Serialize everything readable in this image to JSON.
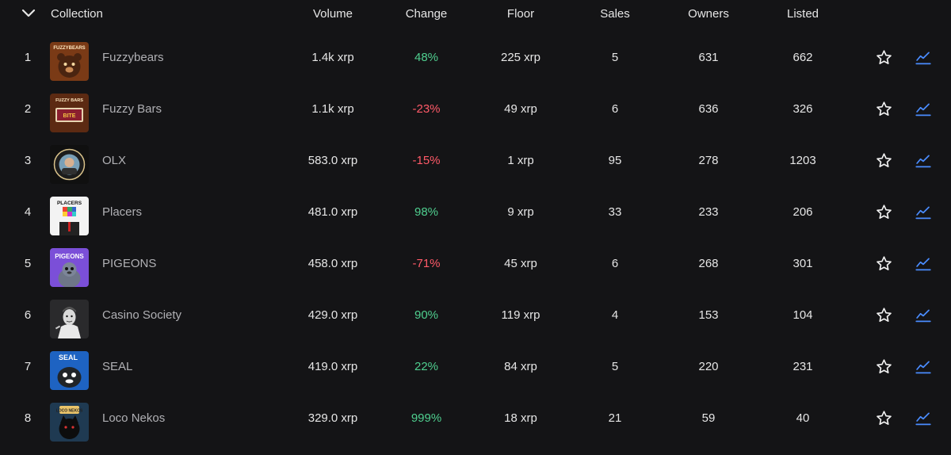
{
  "columns": {
    "collection": "Collection",
    "volume": "Volume",
    "change": "Change",
    "floor": "Floor",
    "sales": "Sales",
    "owners": "Owners",
    "listed": "Listed"
  },
  "icons": {
    "sort": "chevron-down-icon",
    "favorite": "star-icon",
    "chart": "trend-chart-icon"
  },
  "colors": {
    "background": "#141416",
    "positive": "#4fcf8f",
    "negative": "#ff5a68",
    "chart_icon": "#4a8cff",
    "name_text": "#b0b0b4"
  },
  "rows": [
    {
      "rank": "1",
      "name": "Fuzzybears",
      "volume": "1.4k xrp",
      "change": "48%",
      "change_sign": "pos",
      "floor": "225 xrp",
      "sales": "5",
      "owners": "631",
      "listed": "662",
      "thumb_text": "FUZZYBEARS"
    },
    {
      "rank": "2",
      "name": "Fuzzy Bars",
      "volume": "1.1k xrp",
      "change": "-23%",
      "change_sign": "neg",
      "floor": "49 xrp",
      "sales": "6",
      "owners": "636",
      "listed": "326",
      "thumb_text": "FUZZY BARS"
    },
    {
      "rank": "3",
      "name": "OLX",
      "volume": "583.0 xrp",
      "change": "-15%",
      "change_sign": "neg",
      "floor": "1 xrp",
      "sales": "95",
      "owners": "278",
      "listed": "1203",
      "thumb_text": ""
    },
    {
      "rank": "4",
      "name": "Placers",
      "volume": "481.0 xrp",
      "change": "98%",
      "change_sign": "pos",
      "floor": "9 xrp",
      "sales": "33",
      "owners": "233",
      "listed": "206",
      "thumb_text": "PLACERS"
    },
    {
      "rank": "5",
      "name": "PIGEONS",
      "volume": "458.0 xrp",
      "change": "-71%",
      "change_sign": "neg",
      "floor": "45 xrp",
      "sales": "6",
      "owners": "268",
      "listed": "301",
      "thumb_text": "PIGEONS"
    },
    {
      "rank": "6",
      "name": "Casino Society",
      "volume": "429.0 xrp",
      "change": "90%",
      "change_sign": "pos",
      "floor": "119 xrp",
      "sales": "4",
      "owners": "153",
      "listed": "104",
      "thumb_text": ""
    },
    {
      "rank": "7",
      "name": "SEAL",
      "volume": "419.0 xrp",
      "change": "22%",
      "change_sign": "pos",
      "floor": "84 xrp",
      "sales": "5",
      "owners": "220",
      "listed": "231",
      "thumb_text": "SEAL"
    },
    {
      "rank": "8",
      "name": "Loco Nekos",
      "volume": "329.0 xrp",
      "change": "999%",
      "change_sign": "pos",
      "floor": "18 xrp",
      "sales": "21",
      "owners": "59",
      "listed": "40",
      "thumb_text": "LOCO NEKOS"
    }
  ]
}
